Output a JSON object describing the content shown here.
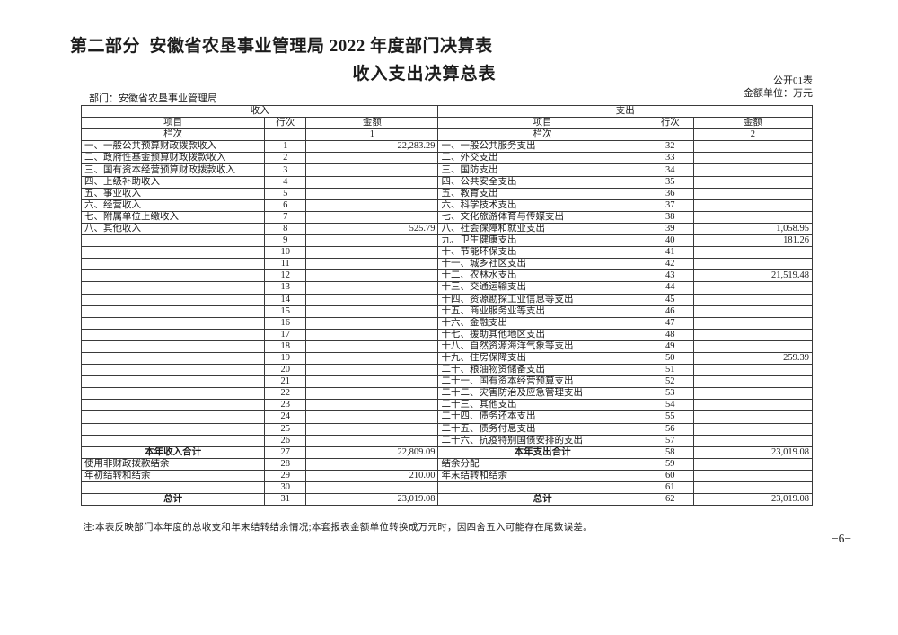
{
  "page": {
    "title": "第二部分  安徽省农垦事业管理局 2022 年度部门决算表",
    "subtitle": "收入支出决算总表",
    "table_no": "公开01表",
    "unit_label": "金额单位：万元",
    "department_label": "部门：安徽省农垦事业管理局",
    "note": "注:本表反映部门本年度的总收支和年末结转结余情况;本套报表金额单位转换成万元时，因四舍五入可能存在尾数误差。",
    "page_number": "−6−"
  },
  "table": {
    "income_header": "收入",
    "expense_header": "支出",
    "col_item": "项目",
    "col_row": "行次",
    "col_amount": "金额",
    "col_index_label": "栏次",
    "income_col_index": "1",
    "expense_col_index": "2",
    "income_rows": [
      {
        "item": "一、一般公共预算财政拨款收入",
        "row": "1",
        "amount": "22,283.29",
        "bold": false
      },
      {
        "item": "二、政府性基金预算财政拨款收入",
        "row": "2",
        "amount": "",
        "bold": false
      },
      {
        "item": "三、国有资本经营预算财政拨款收入",
        "row": "3",
        "amount": "",
        "bold": false
      },
      {
        "item": "四、上级补助收入",
        "row": "4",
        "amount": "",
        "bold": false
      },
      {
        "item": "五、事业收入",
        "row": "5",
        "amount": "",
        "bold": false
      },
      {
        "item": "六、经营收入",
        "row": "6",
        "amount": "",
        "bold": false
      },
      {
        "item": "七、附属单位上缴收入",
        "row": "7",
        "amount": "",
        "bold": false
      },
      {
        "item": "八、其他收入",
        "row": "8",
        "amount": "525.79",
        "bold": false
      },
      {
        "item": "",
        "row": "9",
        "amount": "",
        "bold": false
      },
      {
        "item": "",
        "row": "10",
        "amount": "",
        "bold": false
      },
      {
        "item": "",
        "row": "11",
        "amount": "",
        "bold": false
      },
      {
        "item": "",
        "row": "12",
        "amount": "",
        "bold": false
      },
      {
        "item": "",
        "row": "13",
        "amount": "",
        "bold": false
      },
      {
        "item": "",
        "row": "14",
        "amount": "",
        "bold": false
      },
      {
        "item": "",
        "row": "15",
        "amount": "",
        "bold": false
      },
      {
        "item": "",
        "row": "16",
        "amount": "",
        "bold": false
      },
      {
        "item": "",
        "row": "17",
        "amount": "",
        "bold": false
      },
      {
        "item": "",
        "row": "18",
        "amount": "",
        "bold": false
      },
      {
        "item": "",
        "row": "19",
        "amount": "",
        "bold": false
      },
      {
        "item": "",
        "row": "20",
        "amount": "",
        "bold": false
      },
      {
        "item": "",
        "row": "21",
        "amount": "",
        "bold": false
      },
      {
        "item": "",
        "row": "22",
        "amount": "",
        "bold": false
      },
      {
        "item": "",
        "row": "23",
        "amount": "",
        "bold": false
      },
      {
        "item": "",
        "row": "24",
        "amount": "",
        "bold": false
      },
      {
        "item": "",
        "row": "25",
        "amount": "",
        "bold": false
      },
      {
        "item": "",
        "row": "26",
        "amount": "",
        "bold": false
      },
      {
        "item": "本年收入合计",
        "row": "27",
        "amount": "22,809.09",
        "bold": true
      },
      {
        "item": "使用非财政拨款结余",
        "row": "28",
        "amount": "",
        "bold": false
      },
      {
        "item": "年初结转和结余",
        "row": "29",
        "amount": "210.00",
        "bold": false
      },
      {
        "item": "",
        "row": "30",
        "amount": "",
        "bold": false
      },
      {
        "item": "总计",
        "row": "31",
        "amount": "23,019.08",
        "bold": true
      }
    ],
    "expense_rows": [
      {
        "item": "一、一般公共服务支出",
        "row": "32",
        "amount": "",
        "bold": false
      },
      {
        "item": "二、外交支出",
        "row": "33",
        "amount": "",
        "bold": false
      },
      {
        "item": "三、国防支出",
        "row": "34",
        "amount": "",
        "bold": false
      },
      {
        "item": "四、公共安全支出",
        "row": "35",
        "amount": "",
        "bold": false
      },
      {
        "item": "五、教育支出",
        "row": "36",
        "amount": "",
        "bold": false
      },
      {
        "item": "六、科学技术支出",
        "row": "37",
        "amount": "",
        "bold": false
      },
      {
        "item": "七、文化旅游体育与传媒支出",
        "row": "38",
        "amount": "",
        "bold": false
      },
      {
        "item": "八、社会保障和就业支出",
        "row": "39",
        "amount": "1,058.95",
        "bold": false
      },
      {
        "item": "九、卫生健康支出",
        "row": "40",
        "amount": "181.26",
        "bold": false
      },
      {
        "item": "十、节能环保支出",
        "row": "41",
        "amount": "",
        "bold": false
      },
      {
        "item": "十一、城乡社区支出",
        "row": "42",
        "amount": "",
        "bold": false
      },
      {
        "item": "十二、农林水支出",
        "row": "43",
        "amount": "21,519.48",
        "bold": false
      },
      {
        "item": "十三、交通运输支出",
        "row": "44",
        "amount": "",
        "bold": false
      },
      {
        "item": "十四、资源勘探工业信息等支出",
        "row": "45",
        "amount": "",
        "bold": false
      },
      {
        "item": "十五、商业服务业等支出",
        "row": "46",
        "amount": "",
        "bold": false
      },
      {
        "item": "十六、金融支出",
        "row": "47",
        "amount": "",
        "bold": false
      },
      {
        "item": "十七、援助其他地区支出",
        "row": "48",
        "amount": "",
        "bold": false
      },
      {
        "item": "十八、自然资源海洋气象等支出",
        "row": "49",
        "amount": "",
        "bold": false
      },
      {
        "item": "十九、住房保障支出",
        "row": "50",
        "amount": "259.39",
        "bold": false
      },
      {
        "item": "二十、粮油物资储备支出",
        "row": "51",
        "amount": "",
        "bold": false
      },
      {
        "item": "二十一、国有资本经营预算支出",
        "row": "52",
        "amount": "",
        "bold": false
      },
      {
        "item": "二十二、灾害防治及应急管理支出",
        "row": "53",
        "amount": "",
        "bold": false
      },
      {
        "item": "二十三、其他支出",
        "row": "54",
        "amount": "",
        "bold": false
      },
      {
        "item": "二十四、债务还本支出",
        "row": "55",
        "amount": "",
        "bold": false
      },
      {
        "item": "二十五、债务付息支出",
        "row": "56",
        "amount": "",
        "bold": false
      },
      {
        "item": "二十六、抗疫特别国债安排的支出",
        "row": "57",
        "amount": "",
        "bold": false
      },
      {
        "item": "本年支出合计",
        "row": "58",
        "amount": "23,019.08",
        "bold": true
      },
      {
        "item": "结余分配",
        "row": "59",
        "amount": "",
        "bold": false
      },
      {
        "item": "年末结转和结余",
        "row": "60",
        "amount": "",
        "bold": false
      },
      {
        "item": "",
        "row": "61",
        "amount": "",
        "bold": false
      },
      {
        "item": "总计",
        "row": "62",
        "amount": "23,019.08",
        "bold": true
      }
    ]
  }
}
